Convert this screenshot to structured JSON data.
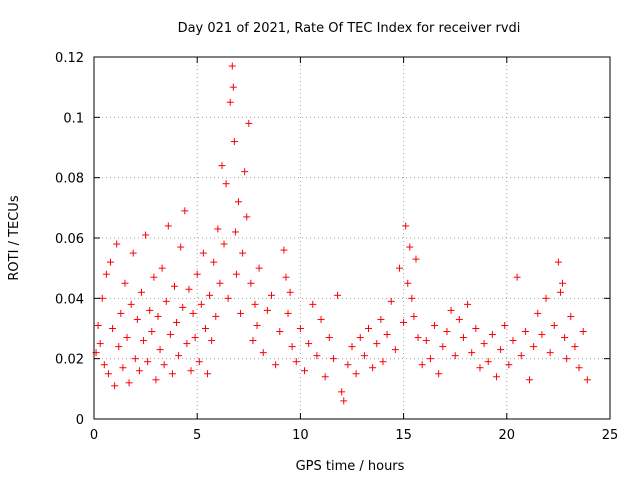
{
  "chart_data": {
    "type": "scatter",
    "title": "Day 021 of 2021, Rate Of TEC Index for receiver rvdi",
    "xlabel": "GPS time / hours",
    "ylabel": "ROTI / TECUs",
    "xlim": [
      0,
      25
    ],
    "ylim": [
      0,
      0.12
    ],
    "x_ticks": [
      "0",
      "5",
      "10",
      "15",
      "20",
      "25"
    ],
    "y_ticks": [
      "0",
      "0.02",
      "0.04",
      "0.06",
      "0.08",
      "0.1",
      "0.12"
    ],
    "grid": true,
    "legend": "none",
    "marker": "plus",
    "colors": {
      "series": "#ff0000",
      "grid": "#a0a0a0",
      "axis": "#000000"
    },
    "series": [
      {
        "values": [
          [
            0.1,
            0.022
          ],
          [
            0.2,
            0.031
          ],
          [
            0.3,
            0.025
          ],
          [
            0.4,
            0.04
          ],
          [
            0.5,
            0.018
          ],
          [
            0.6,
            0.048
          ],
          [
            0.7,
            0.015
          ],
          [
            0.8,
            0.052
          ],
          [
            0.9,
            0.03
          ],
          [
            1.0,
            0.011
          ],
          [
            1.1,
            0.058
          ],
          [
            1.2,
            0.024
          ],
          [
            1.3,
            0.035
          ],
          [
            1.4,
            0.017
          ],
          [
            1.5,
            0.045
          ],
          [
            1.6,
            0.027
          ],
          [
            1.7,
            0.012
          ],
          [
            1.8,
            0.038
          ],
          [
            1.9,
            0.055
          ],
          [
            2.0,
            0.02
          ],
          [
            2.1,
            0.033
          ],
          [
            2.2,
            0.016
          ],
          [
            2.3,
            0.042
          ],
          [
            2.4,
            0.026
          ],
          [
            2.5,
            0.061
          ],
          [
            2.6,
            0.019
          ],
          [
            2.7,
            0.036
          ],
          [
            2.8,
            0.029
          ],
          [
            2.9,
            0.047
          ],
          [
            3.0,
            0.013
          ],
          [
            3.1,
            0.034
          ],
          [
            3.2,
            0.023
          ],
          [
            3.3,
            0.05
          ],
          [
            3.4,
            0.018
          ],
          [
            3.5,
            0.039
          ],
          [
            3.6,
            0.064
          ],
          [
            3.7,
            0.028
          ],
          [
            3.8,
            0.015
          ],
          [
            3.9,
            0.044
          ],
          [
            4.0,
            0.032
          ],
          [
            4.1,
            0.021
          ],
          [
            4.2,
            0.057
          ],
          [
            4.3,
            0.037
          ],
          [
            4.4,
            0.069
          ],
          [
            4.5,
            0.025
          ],
          [
            4.6,
            0.043
          ],
          [
            4.7,
            0.016
          ],
          [
            4.8,
            0.035
          ],
          [
            4.9,
            0.027
          ],
          [
            5.0,
            0.048
          ],
          [
            5.1,
            0.019
          ],
          [
            5.2,
            0.038
          ],
          [
            5.3,
            0.055
          ],
          [
            5.4,
            0.03
          ],
          [
            5.5,
            0.015
          ],
          [
            5.6,
            0.041
          ],
          [
            5.7,
            0.026
          ],
          [
            5.8,
            0.052
          ],
          [
            5.9,
            0.034
          ],
          [
            6.0,
            0.063
          ],
          [
            6.1,
            0.045
          ],
          [
            6.2,
            0.084
          ],
          [
            6.3,
            0.058
          ],
          [
            6.4,
            0.078
          ],
          [
            6.5,
            0.04
          ],
          [
            6.6,
            0.105
          ],
          [
            6.7,
            0.117
          ],
          [
            6.75,
            0.11
          ],
          [
            6.8,
            0.092
          ],
          [
            6.85,
            0.062
          ],
          [
            6.9,
            0.048
          ],
          [
            7.0,
            0.072
          ],
          [
            7.1,
            0.035
          ],
          [
            7.2,
            0.055
          ],
          [
            7.3,
            0.082
          ],
          [
            7.4,
            0.067
          ],
          [
            7.5,
            0.098
          ],
          [
            7.6,
            0.045
          ],
          [
            7.7,
            0.026
          ],
          [
            7.8,
            0.038
          ],
          [
            7.9,
            0.031
          ],
          [
            8.0,
            0.05
          ],
          [
            8.2,
            0.022
          ],
          [
            8.4,
            0.036
          ],
          [
            8.6,
            0.041
          ],
          [
            8.8,
            0.018
          ],
          [
            9.0,
            0.029
          ],
          [
            9.2,
            0.056
          ],
          [
            9.3,
            0.047
          ],
          [
            9.4,
            0.035
          ],
          [
            9.5,
            0.042
          ],
          [
            9.6,
            0.024
          ],
          [
            9.8,
            0.019
          ],
          [
            10.0,
            0.03
          ],
          [
            10.2,
            0.016
          ],
          [
            10.4,
            0.025
          ],
          [
            10.6,
            0.038
          ],
          [
            10.8,
            0.021
          ],
          [
            11.0,
            0.033
          ],
          [
            11.2,
            0.014
          ],
          [
            11.4,
            0.027
          ],
          [
            11.6,
            0.02
          ],
          [
            11.8,
            0.041
          ],
          [
            12.0,
            0.009
          ],
          [
            12.1,
            0.006
          ],
          [
            12.3,
            0.018
          ],
          [
            12.5,
            0.024
          ],
          [
            12.7,
            0.015
          ],
          [
            12.9,
            0.027
          ],
          [
            13.1,
            0.021
          ],
          [
            13.3,
            0.03
          ],
          [
            13.5,
            0.017
          ],
          [
            13.7,
            0.025
          ],
          [
            13.9,
            0.033
          ],
          [
            14.0,
            0.019
          ],
          [
            14.2,
            0.028
          ],
          [
            14.4,
            0.039
          ],
          [
            14.6,
            0.023
          ],
          [
            14.8,
            0.05
          ],
          [
            15.0,
            0.032
          ],
          [
            15.1,
            0.064
          ],
          [
            15.2,
            0.045
          ],
          [
            15.3,
            0.057
          ],
          [
            15.4,
            0.04
          ],
          [
            15.5,
            0.034
          ],
          [
            15.6,
            0.053
          ],
          [
            15.7,
            0.027
          ],
          [
            15.9,
            0.018
          ],
          [
            16.1,
            0.026
          ],
          [
            16.3,
            0.02
          ],
          [
            16.5,
            0.031
          ],
          [
            16.7,
            0.015
          ],
          [
            16.9,
            0.024
          ],
          [
            17.1,
            0.029
          ],
          [
            17.3,
            0.036
          ],
          [
            17.5,
            0.021
          ],
          [
            17.7,
            0.033
          ],
          [
            17.9,
            0.027
          ],
          [
            18.1,
            0.038
          ],
          [
            18.3,
            0.022
          ],
          [
            18.5,
            0.03
          ],
          [
            18.7,
            0.017
          ],
          [
            18.9,
            0.025
          ],
          [
            19.1,
            0.019
          ],
          [
            19.3,
            0.028
          ],
          [
            19.5,
            0.014
          ],
          [
            19.7,
            0.023
          ],
          [
            19.9,
            0.031
          ],
          [
            20.1,
            0.018
          ],
          [
            20.3,
            0.026
          ],
          [
            20.5,
            0.047
          ],
          [
            20.7,
            0.021
          ],
          [
            20.9,
            0.029
          ],
          [
            21.1,
            0.013
          ],
          [
            21.3,
            0.024
          ],
          [
            21.5,
            0.035
          ],
          [
            21.7,
            0.028
          ],
          [
            21.9,
            0.04
          ],
          [
            22.1,
            0.022
          ],
          [
            22.3,
            0.031
          ],
          [
            22.5,
            0.052
          ],
          [
            22.6,
            0.042
          ],
          [
            22.7,
            0.045
          ],
          [
            22.8,
            0.027
          ],
          [
            22.9,
            0.02
          ],
          [
            23.1,
            0.034
          ],
          [
            23.3,
            0.024
          ],
          [
            23.5,
            0.017
          ],
          [
            23.7,
            0.029
          ],
          [
            23.9,
            0.013
          ]
        ]
      }
    ]
  }
}
